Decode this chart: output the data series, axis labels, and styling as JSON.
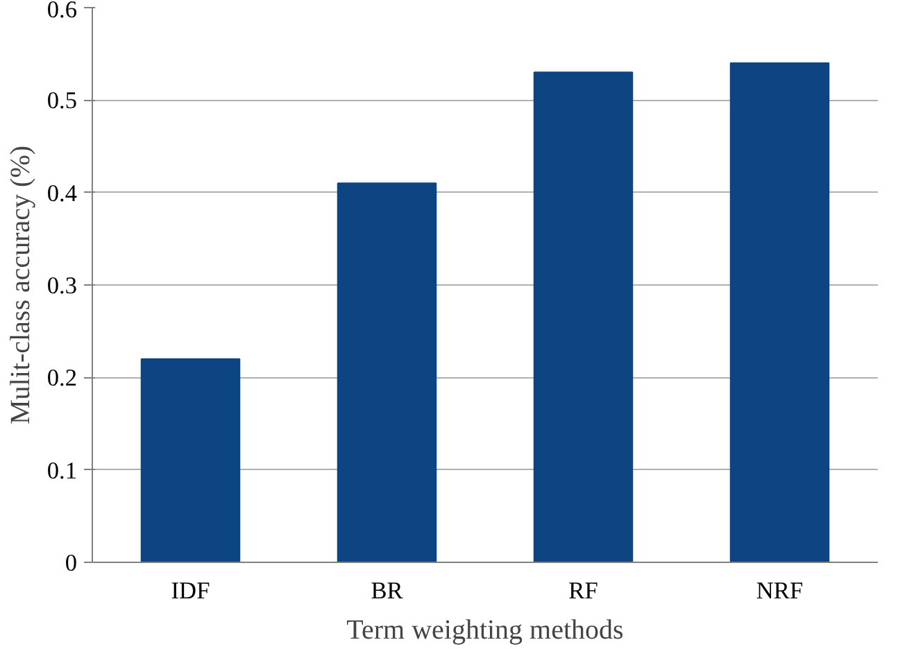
{
  "chart_data": {
    "type": "bar",
    "xlabel": "Term weighting methods",
    "ylabel": "Mulit-class accuracy (%)",
    "categories": [
      "IDF",
      "BR",
      "RF",
      "NRF"
    ],
    "values": [
      0.22,
      0.41,
      0.53,
      0.54
    ],
    "color": "#0d4482",
    "ylim": [
      0,
      0.6
    ],
    "yticks": [
      {
        "value": 0,
        "label": "0"
      },
      0.1,
      0.2,
      0.3,
      0.4,
      0.5,
      0.6
    ],
    "grid": "y"
  }
}
